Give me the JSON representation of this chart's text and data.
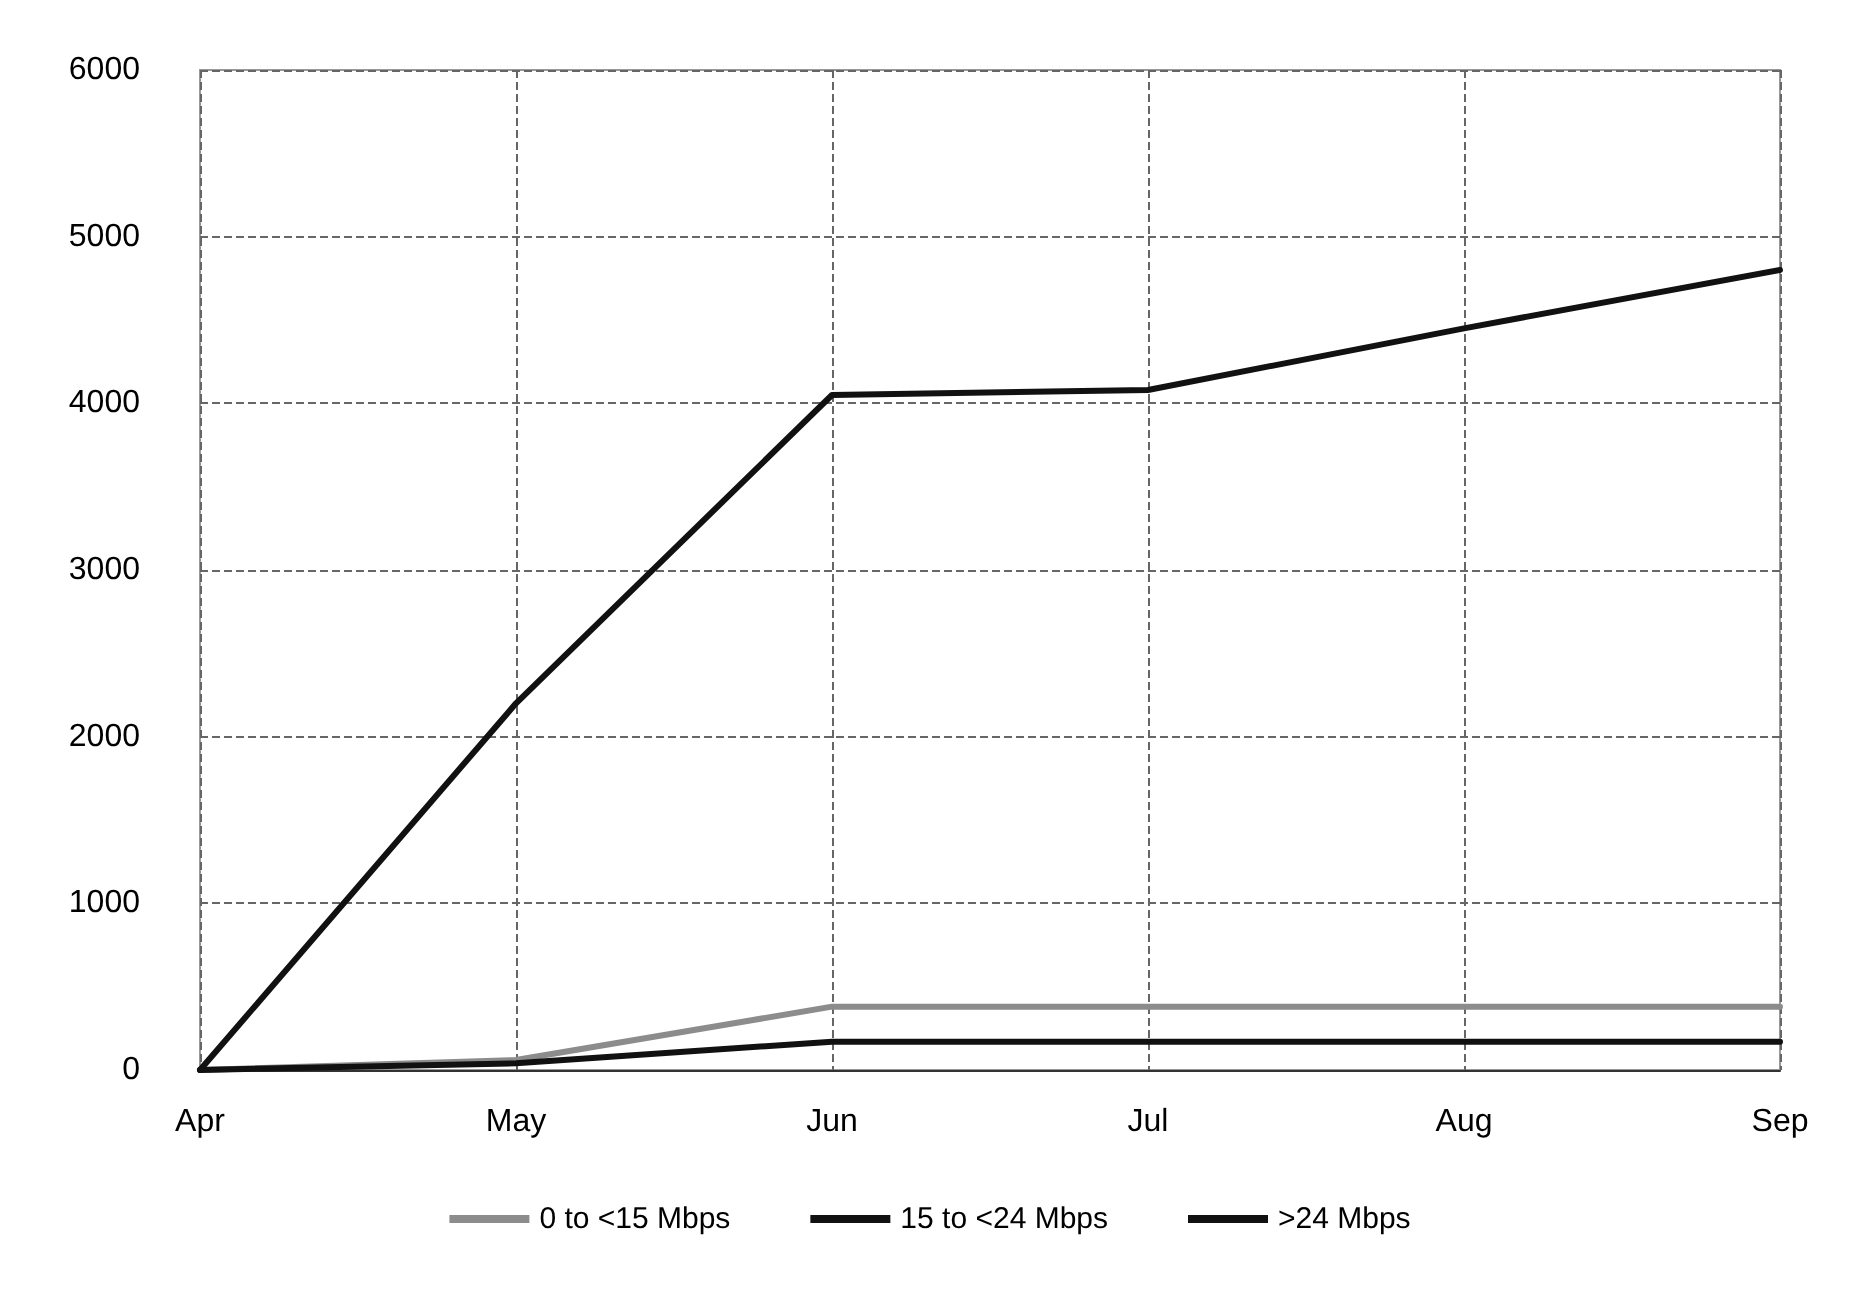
{
  "chart_data": {
    "type": "line",
    "categories": [
      "Apr",
      "May",
      "Jun",
      "Jul",
      "Aug",
      "Sep"
    ],
    "series": [
      {
        "name": "0 to <15 Mbps",
        "color": "#8c8c8c",
        "values": [
          0,
          60,
          380,
          380,
          380,
          380
        ]
      },
      {
        "name": "15 to <24 Mbps",
        "color": "#111111",
        "values": [
          0,
          40,
          170,
          170,
          170,
          170
        ]
      },
      {
        "name": ">24 Mbps",
        "color": "#111111",
        "values": [
          0,
          2200,
          4050,
          4080,
          4450,
          4800
        ]
      }
    ],
    "ylim": [
      0,
      6000
    ],
    "yticks": [
      0,
      1000,
      2000,
      3000,
      4000,
      5000,
      6000
    ],
    "grid": true,
    "legend": "bottom",
    "marker": "none",
    "line_style": "solid"
  }
}
